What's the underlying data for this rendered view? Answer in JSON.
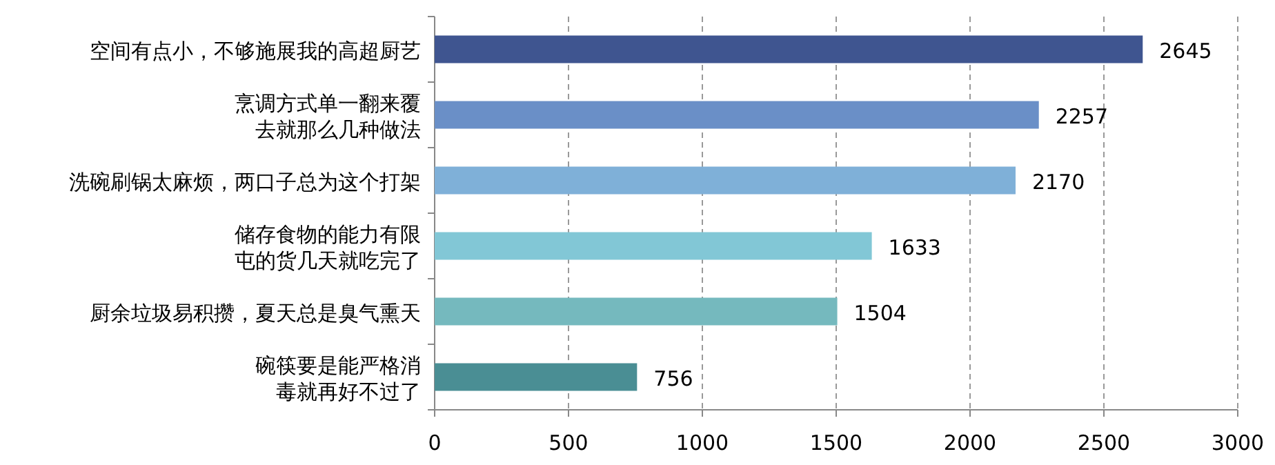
{
  "chart_data": {
    "type": "bar",
    "orientation": "horizontal",
    "categories": [
      "空间有点小，不够施展我的高超厨艺",
      "烹调方式单一翻来覆去就那么几种做法",
      "洗碗刷锅太麻烦，两口子总为这个打架",
      "储存食物的能力有限屯的货几天就吃完了",
      "厨余垃圾易积攒，夏天总是臭气熏天",
      "碗筷要是能严格消毒就再好不过了"
    ],
    "values": [
      2645,
      2257,
      2170,
      1633,
      1504,
      756
    ],
    "colors": [
      "#3f5590",
      "#6a8fc7",
      "#7fb0d8",
      "#82c7d6",
      "#75b9be",
      "#4a8e94"
    ],
    "xlim": [
      0,
      3000
    ],
    "xticks": [
      0,
      500,
      1000,
      1500,
      2000,
      2500,
      3000
    ],
    "grid": "x",
    "data_labels": true,
    "legend": false
  }
}
